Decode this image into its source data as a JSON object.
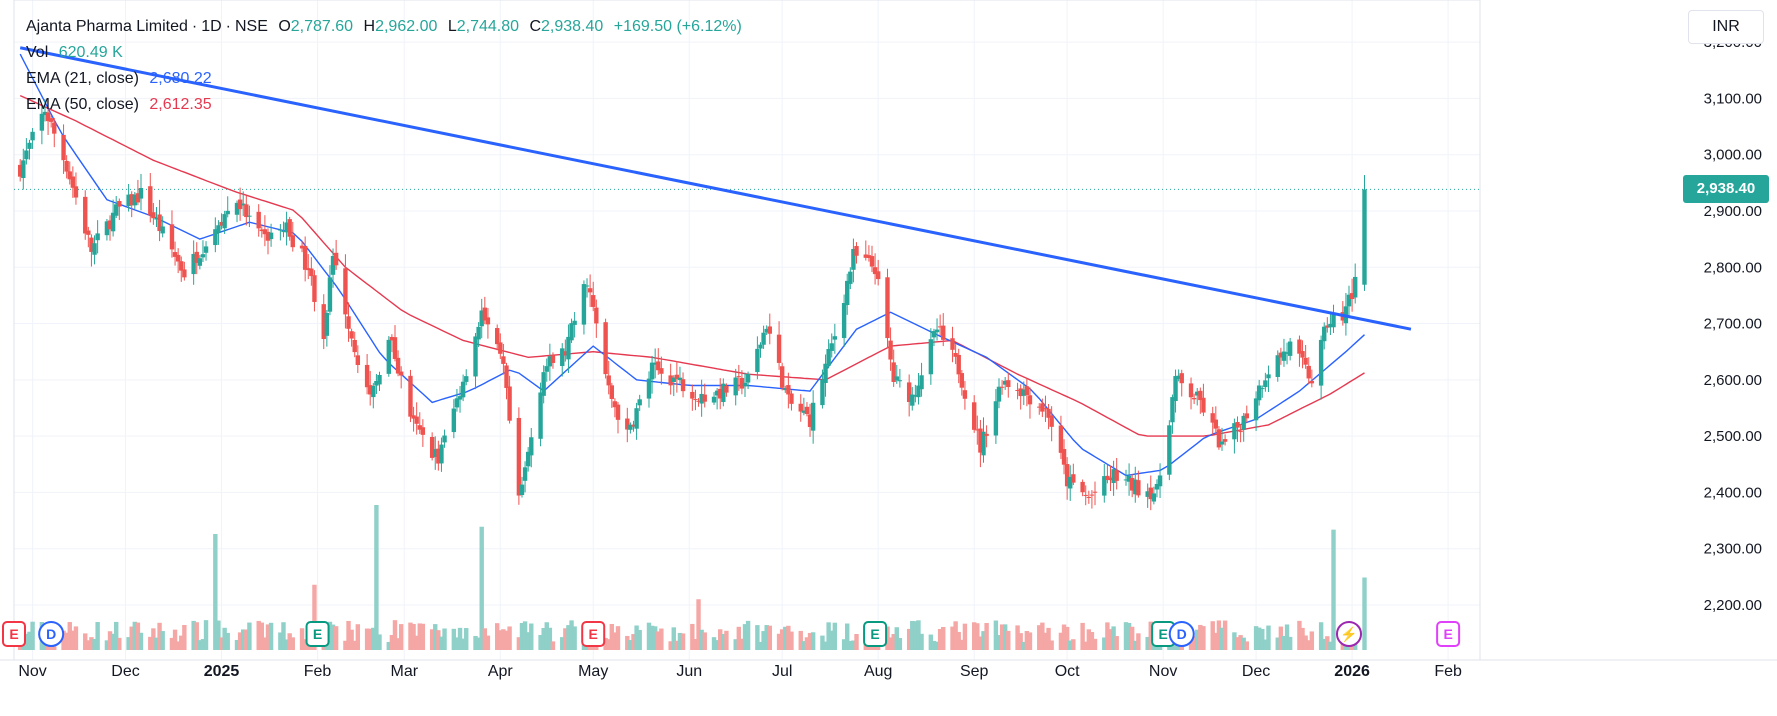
{
  "legend": {
    "symbol": "Ajanta Pharma Limited",
    "interval": "1D",
    "exchange": "NSE",
    "open_key": "O",
    "open": "2,787.60",
    "high_key": "H",
    "high": "2,962.00",
    "low_key": "L",
    "low": "2,744.80",
    "close_key": "C",
    "close": "2,938.40",
    "change": "+169.50 (+6.12%)",
    "vol_label": "Vol",
    "vol_value": "620.49 K",
    "ema21_label": "EMA (21, close)",
    "ema21_value": "2,680.22",
    "ema50_label": "EMA (50, close)",
    "ema50_value": "2,612.35"
  },
  "currency": "INR",
  "last_price_label": "2,938.40",
  "colors": {
    "up": "#26a69a",
    "down": "#ef5350",
    "ema21": "#2962ff",
    "ema50": "#e53950",
    "trendline": "#2962ff",
    "volume_up": "#8fd0c8",
    "volume_down": "#f4a7a5"
  },
  "chart_data": {
    "type": "candlestick",
    "y_ticks": [
      "2,200.00",
      "2,300.00",
      "2,400.00",
      "2,500.00",
      "2,600.00",
      "2,700.00",
      "2,800.00",
      "2,900.00",
      "3,000.00",
      "3,100.00",
      "3,200.00"
    ],
    "y_tick_values": [
      2200,
      2300,
      2400,
      2500,
      2600,
      2700,
      2800,
      2900,
      3000,
      3100,
      3200
    ],
    "ylim": [
      2120,
      3250
    ],
    "x_labels": [
      "Nov",
      "Dec",
      "2025",
      "Feb",
      "Mar",
      "Apr",
      "May",
      "Jun",
      "Jul",
      "Aug",
      "Sep",
      "Oct",
      "Nov",
      "Dec",
      "2026",
      "Feb"
    ],
    "x_label_dates": [
      "2024-11-01",
      "2024-12-01",
      "2025-01-01",
      "2025-02-01",
      "2025-03-01",
      "2025-04-01",
      "2025-05-01",
      "2025-06-01",
      "2025-07-01",
      "2025-08-01",
      "2025-09-01",
      "2025-10-01",
      "2025-11-01",
      "2025-12-01",
      "2026-01-01",
      "2026-02-01"
    ],
    "date_range": [
      "2024-10-26",
      "2026-02-10"
    ],
    "last_price": 2938.4,
    "price_anchors": [
      [
        "2024-10-26",
        2950
      ],
      [
        "2024-11-05",
        3080
      ],
      [
        "2024-11-12",
        2980
      ],
      [
        "2024-11-20",
        2830
      ],
      [
        "2024-11-28",
        2900
      ],
      [
        "2024-12-06",
        2930
      ],
      [
        "2024-12-13",
        2860
      ],
      [
        "2024-12-20",
        2790
      ],
      [
        "2024-12-30",
        2870
      ],
      [
        "2025-01-06",
        2920
      ],
      [
        "2025-01-14",
        2850
      ],
      [
        "2025-01-22",
        2870
      ],
      [
        "2025-01-29",
        2800
      ],
      [
        "2025-02-03",
        2680
      ],
      [
        "2025-02-06",
        2820
      ],
      [
        "2025-02-12",
        2680
      ],
      [
        "2025-02-18",
        2560
      ],
      [
        "2025-02-24",
        2680
      ],
      [
        "2025-03-04",
        2520
      ],
      [
        "2025-03-12",
        2460
      ],
      [
        "2025-03-20",
        2600
      ],
      [
        "2025-03-26",
        2720
      ],
      [
        "2025-04-02",
        2620
      ],
      [
        "2025-04-07",
        2380
      ],
      [
        "2025-04-15",
        2620
      ],
      [
        "2025-04-22",
        2650
      ],
      [
        "2025-04-29",
        2780
      ],
      [
        "2025-05-06",
        2580
      ],
      [
        "2025-05-12",
        2500
      ],
      [
        "2025-05-20",
        2620
      ],
      [
        "2025-05-28",
        2600
      ],
      [
        "2025-06-05",
        2570
      ],
      [
        "2025-06-12",
        2580
      ],
      [
        "2025-06-20",
        2600
      ],
      [
        "2025-06-26",
        2700
      ],
      [
        "2025-07-03",
        2560
      ],
      [
        "2025-07-10",
        2530
      ],
      [
        "2025-07-18",
        2680
      ],
      [
        "2025-07-24",
        2820
      ],
      [
        "2025-07-31",
        2800
      ],
      [
        "2025-08-06",
        2600
      ],
      [
        "2025-08-12",
        2570
      ],
      [
        "2025-08-20",
        2690
      ],
      [
        "2025-08-27",
        2620
      ],
      [
        "2025-09-03",
        2480
      ],
      [
        "2025-09-10",
        2600
      ],
      [
        "2025-09-17",
        2580
      ],
      [
        "2025-09-25",
        2540
      ],
      [
        "2025-10-01",
        2420
      ],
      [
        "2025-10-08",
        2390
      ],
      [
        "2025-10-16",
        2430
      ],
      [
        "2025-10-23",
        2410
      ],
      [
        "2025-10-30",
        2400
      ],
      [
        "2025-11-05",
        2600
      ],
      [
        "2025-11-13",
        2560
      ],
      [
        "2025-11-20",
        2480
      ],
      [
        "2025-11-27",
        2530
      ],
      [
        "2025-12-05",
        2620
      ],
      [
        "2025-12-12",
        2660
      ],
      [
        "2025-12-19",
        2600
      ],
      [
        "2025-12-24",
        2700
      ],
      [
        "2025-12-29",
        2720
      ],
      [
        "2026-01-02",
        2769
      ],
      [
        "2026-01-05",
        2938.4
      ]
    ],
    "series": [
      {
        "name": "EMA (21, close)",
        "anchors": [
          [
            "2024-10-26",
            3200
          ],
          [
            "2024-11-10",
            3040
          ],
          [
            "2024-11-25",
            2920
          ],
          [
            "2024-12-10",
            2890
          ],
          [
            "2024-12-25",
            2850
          ],
          [
            "2025-01-10",
            2880
          ],
          [
            "2025-01-25",
            2860
          ],
          [
            "2025-02-08",
            2760
          ],
          [
            "2025-02-22",
            2640
          ],
          [
            "2025-03-10",
            2560
          ],
          [
            "2025-03-22",
            2580
          ],
          [
            "2025-04-05",
            2620
          ],
          [
            "2025-04-15",
            2580
          ],
          [
            "2025-05-01",
            2660
          ],
          [
            "2025-05-15",
            2600
          ],
          [
            "2025-06-01",
            2590
          ],
          [
            "2025-06-20",
            2590
          ],
          [
            "2025-07-10",
            2580
          ],
          [
            "2025-07-25",
            2690
          ],
          [
            "2025-08-05",
            2720
          ],
          [
            "2025-08-20",
            2680
          ],
          [
            "2025-09-05",
            2640
          ],
          [
            "2025-09-20",
            2580
          ],
          [
            "2025-10-05",
            2480
          ],
          [
            "2025-10-20",
            2430
          ],
          [
            "2025-11-01",
            2440
          ],
          [
            "2025-11-15",
            2500
          ],
          [
            "2025-12-01",
            2530
          ],
          [
            "2025-12-15",
            2580
          ],
          [
            "2025-12-30",
            2650
          ],
          [
            "2026-01-05",
            2680.22
          ]
        ]
      },
      {
        "name": "EMA (50, close)",
        "anchors": [
          [
            "2024-10-26",
            3110
          ],
          [
            "2024-11-15",
            3060
          ],
          [
            "2024-12-10",
            2990
          ],
          [
            "2025-01-05",
            2935
          ],
          [
            "2025-01-25",
            2900
          ],
          [
            "2025-02-10",
            2800
          ],
          [
            "2025-03-01",
            2720
          ],
          [
            "2025-03-20",
            2670
          ],
          [
            "2025-04-10",
            2640
          ],
          [
            "2025-05-01",
            2650
          ],
          [
            "2025-05-20",
            2640
          ],
          [
            "2025-06-20",
            2610
          ],
          [
            "2025-07-15",
            2600
          ],
          [
            "2025-08-05",
            2660
          ],
          [
            "2025-08-25",
            2670
          ],
          [
            "2025-09-15",
            2610
          ],
          [
            "2025-10-05",
            2560
          ],
          [
            "2025-10-25",
            2500
          ],
          [
            "2025-11-15",
            2500
          ],
          [
            "2025-12-05",
            2520
          ],
          [
            "2025-12-25",
            2575
          ],
          [
            "2026-01-05",
            2612.35
          ]
        ]
      }
    ],
    "trendline": [
      [
        "2024-10-28",
        3190
      ],
      [
        "2026-01-20",
        2690
      ]
    ],
    "volume_spikes": [
      [
        "2024-12-30",
        0.8
      ],
      [
        "2025-01-31",
        0.45
      ],
      [
        "2025-02-20",
        1.0
      ],
      [
        "2025-03-26",
        0.85
      ],
      [
        "2025-06-04",
        0.35
      ],
      [
        "2025-12-26",
        0.83
      ],
      [
        "2026-01-05",
        0.5
      ]
    ],
    "events": [
      {
        "date": "2024-10-26",
        "label": "E",
        "kind": "earnings-past"
      },
      {
        "date": "2024-11-07",
        "label": "D",
        "kind": "dividend"
      },
      {
        "date": "2025-02-01",
        "label": "E",
        "kind": "earnings"
      },
      {
        "date": "2025-05-01",
        "label": "E",
        "kind": "earnings-past"
      },
      {
        "date": "2025-07-31",
        "label": "E",
        "kind": "earnings"
      },
      {
        "date": "2025-11-01",
        "label": "E",
        "kind": "earnings"
      },
      {
        "date": "2025-11-07",
        "label": "D",
        "kind": "dividend"
      },
      {
        "date": "2025-12-31",
        "label": "⚡",
        "kind": "flash"
      },
      {
        "date": "2026-02-01",
        "label": "E",
        "kind": "earnings-future"
      }
    ]
  }
}
